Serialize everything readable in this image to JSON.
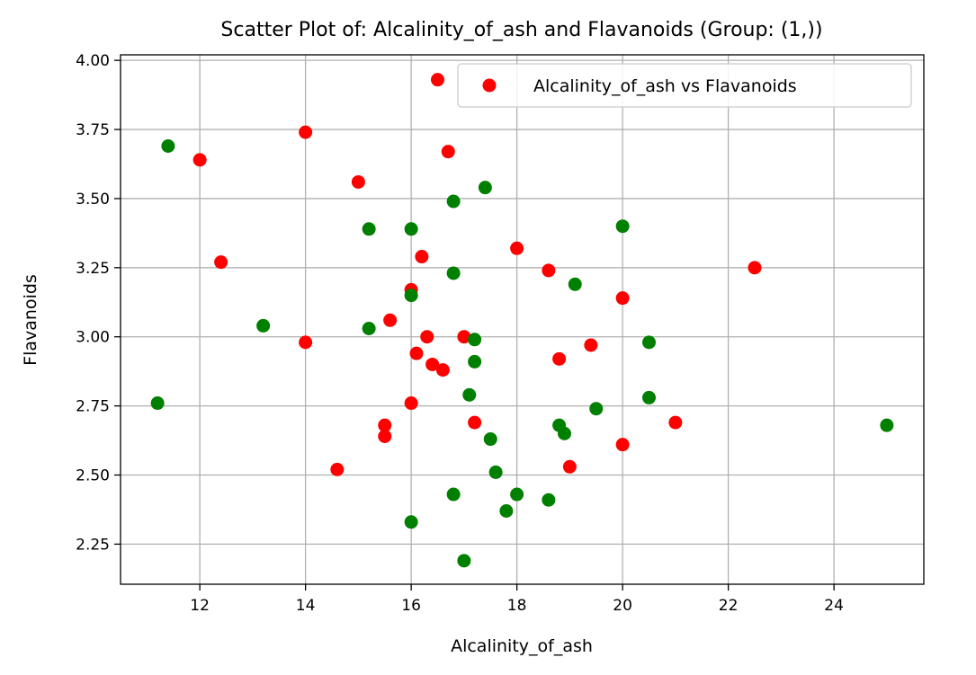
{
  "chart_data": {
    "type": "scatter",
    "title": "Scatter Plot of: Alcalinity_of_ash and Flavanoids (Group: (1,))",
    "xlabel": "Alcalinity_of_ash",
    "ylabel": "Flavanoids",
    "xlim": [
      10.5,
      25.7
    ],
    "ylim": [
      2.105,
      4.02
    ],
    "xticks": [
      12,
      14,
      16,
      18,
      20,
      22,
      24
    ],
    "xtick_labels": [
      "12",
      "14",
      "16",
      "18",
      "20",
      "22",
      "24"
    ],
    "yticks": [
      2.25,
      2.5,
      2.75,
      3.0,
      3.25,
      3.5,
      3.75,
      4.0
    ],
    "ytick_labels": [
      "2.25",
      "2.50",
      "2.75",
      "3.00",
      "3.25",
      "3.50",
      "3.75",
      "4.00"
    ],
    "grid": true,
    "legend": {
      "position": "top-right",
      "entries": [
        "Alcalinity_of_ash vs Flavanoids"
      ]
    },
    "series": [
      {
        "name": "Alcalinity_of_ash vs Flavanoids",
        "color": "#ff0000",
        "points": [
          [
            16.5,
            3.93
          ],
          [
            14.0,
            3.74
          ],
          [
            12.0,
            3.64
          ],
          [
            16.7,
            3.67
          ],
          [
            15.0,
            3.56
          ],
          [
            12.4,
            3.27
          ],
          [
            18.0,
            3.32
          ],
          [
            16.2,
            3.29
          ],
          [
            18.6,
            3.24
          ],
          [
            22.5,
            3.25
          ],
          [
            16.0,
            3.17
          ],
          [
            20.0,
            3.14
          ],
          [
            15.6,
            3.06
          ],
          [
            14.0,
            2.98
          ],
          [
            16.3,
            3.0
          ],
          [
            17.0,
            3.0
          ],
          [
            19.4,
            2.97
          ],
          [
            16.1,
            2.94
          ],
          [
            16.4,
            2.9
          ],
          [
            16.6,
            2.88
          ],
          [
            18.8,
            2.92
          ],
          [
            16.0,
            2.76
          ],
          [
            17.2,
            2.69
          ],
          [
            21.0,
            2.69
          ],
          [
            15.5,
            2.68
          ],
          [
            15.5,
            2.64
          ],
          [
            20.0,
            2.61
          ],
          [
            14.6,
            2.52
          ],
          [
            19.0,
            2.53
          ]
        ]
      },
      {
        "name": "",
        "color": "#008000",
        "points": [
          [
            11.4,
            3.69
          ],
          [
            17.4,
            3.54
          ],
          [
            16.8,
            3.49
          ],
          [
            15.2,
            3.39
          ],
          [
            16.0,
            3.39
          ],
          [
            20.0,
            3.4
          ],
          [
            16.8,
            3.23
          ],
          [
            19.1,
            3.19
          ],
          [
            16.0,
            3.15
          ],
          [
            13.2,
            3.04
          ],
          [
            15.2,
            3.03
          ],
          [
            17.2,
            2.99
          ],
          [
            20.5,
            2.98
          ],
          [
            17.2,
            2.91
          ],
          [
            17.1,
            2.79
          ],
          [
            20.5,
            2.78
          ],
          [
            11.2,
            2.76
          ],
          [
            19.5,
            2.74
          ],
          [
            18.8,
            2.68
          ],
          [
            25.0,
            2.68
          ],
          [
            18.9,
            2.65
          ],
          [
            17.5,
            2.63
          ],
          [
            17.6,
            2.51
          ],
          [
            16.8,
            2.43
          ],
          [
            18.0,
            2.43
          ],
          [
            18.6,
            2.41
          ],
          [
            17.8,
            2.37
          ],
          [
            16.0,
            2.33
          ],
          [
            17.0,
            2.19
          ]
        ]
      }
    ]
  }
}
